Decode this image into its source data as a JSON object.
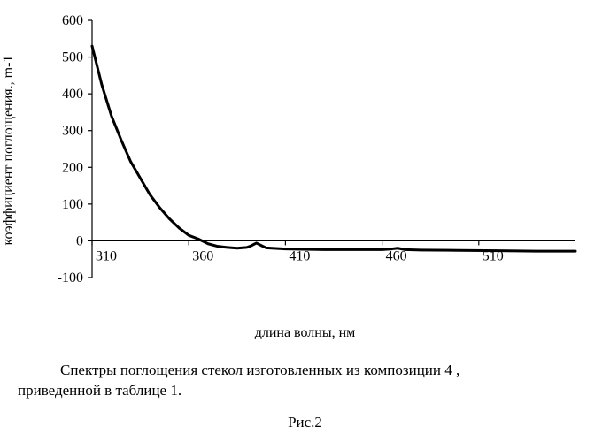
{
  "chart": {
    "type": "line",
    "ylabel": "коэффициент поглощения., m-1",
    "xlabel": "длина волны, нм",
    "xlim": [
      310,
      560
    ],
    "ylim": [
      -100,
      600
    ],
    "xtick_start": 310,
    "xtick_step": 50,
    "xtick_count": 5,
    "ytick_start": -100,
    "ytick_step": 100,
    "ytick_count": 8,
    "label_fontsize": 16,
    "tick_fontsize": 16,
    "background_color": "#ffffff",
    "axis_color": "#000000",
    "axis_width": 1.2,
    "series": {
      "color": "#000000",
      "width": 3,
      "points_x": [
        310,
        315,
        320,
        325,
        330,
        335,
        340,
        345,
        350,
        355,
        360,
        365,
        370,
        375,
        380,
        385,
        390,
        392,
        395,
        398,
        400,
        410,
        420,
        430,
        440,
        450,
        460,
        465,
        468,
        472,
        480,
        500,
        520,
        540,
        560
      ],
      "points_y": [
        530,
        425,
        340,
        275,
        215,
        170,
        125,
        90,
        60,
        35,
        15,
        5,
        -8,
        -15,
        -18,
        -20,
        -18,
        -14,
        -6,
        -14,
        -19,
        -22,
        -23,
        -24,
        -24,
        -24,
        -24,
        -22,
        -20,
        -24,
        -25,
        -26,
        -27,
        -28,
        -28
      ]
    }
  },
  "caption_line1": "Спектры  поглощения  стекол    изготовленных  из  композиции  4  ,",
  "caption_line2": "приведенной в таблице 1.",
  "figure_label": "Рис.2"
}
